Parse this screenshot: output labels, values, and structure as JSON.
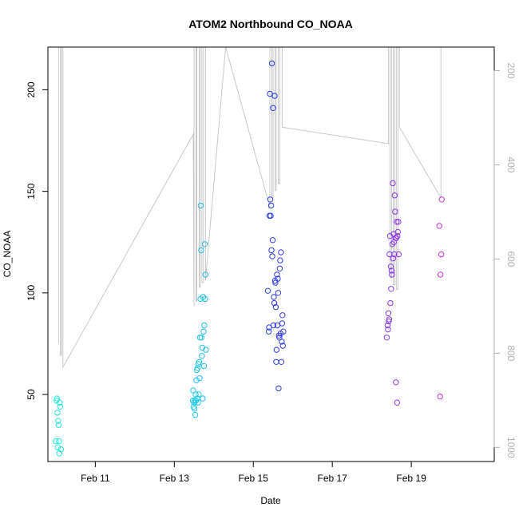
{
  "chart_data": {
    "type": "scatter",
    "title": "ATOM2 Northbound CO_NOAA",
    "xlabel": "Date",
    "ylabel": "CO_NOAA",
    "x_unit": "days in February",
    "xlim": [
      9.8,
      21.1
    ],
    "ylim": [
      17,
      221
    ],
    "x_ticks": [
      {
        "v": 11,
        "label": "Feb 11"
      },
      {
        "v": 13,
        "label": "Feb 13"
      },
      {
        "v": 15,
        "label": "Feb 15"
      },
      {
        "v": 17,
        "label": "Feb 17"
      },
      {
        "v": 19,
        "label": "Feb 19"
      }
    ],
    "y_ticks": [
      50,
      100,
      150,
      200
    ],
    "y2": {
      "label_color": "#b0b0b0",
      "lim": [
        1030,
        150
      ],
      "ticks": [
        200,
        400,
        600,
        800,
        1000
      ],
      "line_color": "#c8c8c8",
      "line_points": [
        [
          10.07,
          778
        ],
        [
          10.07,
          150
        ],
        [
          10.12,
          150
        ],
        [
          10.12,
          805
        ],
        [
          10.14,
          805
        ],
        [
          10.14,
          150
        ],
        [
          10.18,
          150
        ],
        [
          10.18,
          830
        ],
        [
          13.48,
          335
        ],
        [
          13.5,
          700
        ],
        [
          13.5,
          150
        ],
        [
          13.55,
          150
        ],
        [
          13.55,
          690
        ],
        [
          13.57,
          690
        ],
        [
          13.57,
          150
        ],
        [
          13.63,
          150
        ],
        [
          13.63,
          660
        ],
        [
          13.66,
          660
        ],
        [
          13.66,
          150
        ],
        [
          13.7,
          150
        ],
        [
          13.7,
          650
        ],
        [
          13.74,
          650
        ],
        [
          13.74,
          150
        ],
        [
          13.79,
          150
        ],
        [
          13.79,
          645
        ],
        [
          14.3,
          150
        ],
        [
          15.42,
          490
        ],
        [
          15.42,
          150
        ],
        [
          15.47,
          150
        ],
        [
          15.47,
          470
        ],
        [
          15.5,
          470
        ],
        [
          15.5,
          150
        ],
        [
          15.55,
          150
        ],
        [
          15.55,
          455
        ],
        [
          15.58,
          455
        ],
        [
          15.58,
          150
        ],
        [
          15.63,
          150
        ],
        [
          15.63,
          440
        ],
        [
          15.67,
          440
        ],
        [
          15.67,
          150
        ],
        [
          15.73,
          150
        ],
        [
          15.73,
          320
        ],
        [
          18.42,
          355
        ],
        [
          18.42,
          150
        ],
        [
          18.46,
          150
        ],
        [
          18.46,
          640
        ],
        [
          18.5,
          640
        ],
        [
          18.5,
          150
        ],
        [
          18.54,
          150
        ],
        [
          18.54,
          655
        ],
        [
          18.58,
          655
        ],
        [
          18.58,
          150
        ],
        [
          18.62,
          150
        ],
        [
          18.62,
          665
        ],
        [
          18.66,
          665
        ],
        [
          18.66,
          150
        ],
        [
          18.7,
          150
        ],
        [
          18.7,
          320
        ],
        [
          19.75,
          470
        ],
        [
          19.75,
          150
        ]
      ]
    },
    "points": [
      {
        "x": 10.0,
        "y": 27
      },
      {
        "x": 10.02,
        "y": 47
      },
      {
        "x": 10.03,
        "y": 48
      },
      {
        "x": 10.04,
        "y": 41
      },
      {
        "x": 10.05,
        "y": 24
      },
      {
        "x": 10.06,
        "y": 37
      },
      {
        "x": 10.07,
        "y": 35
      },
      {
        "x": 10.08,
        "y": 27
      },
      {
        "x": 10.09,
        "y": 21
      },
      {
        "x": 10.1,
        "y": 46
      },
      {
        "x": 10.11,
        "y": 44
      },
      {
        "x": 10.13,
        "y": 23
      },
      {
        "x": 13.47,
        "y": 47
      },
      {
        "x": 13.48,
        "y": 52
      },
      {
        "x": 13.49,
        "y": 44
      },
      {
        "x": 13.5,
        "y": 46
      },
      {
        "x": 13.51,
        "y": 43
      },
      {
        "x": 13.52,
        "y": 47
      },
      {
        "x": 13.53,
        "y": 40
      },
      {
        "x": 13.54,
        "y": 50
      },
      {
        "x": 13.55,
        "y": 47
      },
      {
        "x": 13.56,
        "y": 57
      },
      {
        "x": 13.57,
        "y": 62
      },
      {
        "x": 13.58,
        "y": 48
      },
      {
        "x": 13.59,
        "y": 63
      },
      {
        "x": 13.6,
        "y": 46
      },
      {
        "x": 13.61,
        "y": 65
      },
      {
        "x": 13.62,
        "y": 50
      },
      {
        "x": 13.63,
        "y": 66
      },
      {
        "x": 13.64,
        "y": 58
      },
      {
        "x": 13.65,
        "y": 78
      },
      {
        "x": 13.66,
        "y": 97
      },
      {
        "x": 13.67,
        "y": 143
      },
      {
        "x": 13.68,
        "y": 121
      },
      {
        "x": 13.69,
        "y": 78
      },
      {
        "x": 13.7,
        "y": 69
      },
      {
        "x": 13.71,
        "y": 73
      },
      {
        "x": 13.72,
        "y": 48
      },
      {
        "x": 13.73,
        "y": 98
      },
      {
        "x": 13.74,
        "y": 81
      },
      {
        "x": 13.75,
        "y": 64
      },
      {
        "x": 13.76,
        "y": 84
      },
      {
        "x": 13.77,
        "y": 124
      },
      {
        "x": 13.78,
        "y": 97
      },
      {
        "x": 13.79,
        "y": 109
      },
      {
        "x": 13.8,
        "y": 72
      },
      {
        "x": 15.37,
        "y": 101
      },
      {
        "x": 15.39,
        "y": 81
      },
      {
        "x": 15.4,
        "y": 83
      },
      {
        "x": 15.41,
        "y": 138
      },
      {
        "x": 15.42,
        "y": 198
      },
      {
        "x": 15.43,
        "y": 146
      },
      {
        "x": 15.44,
        "y": 138
      },
      {
        "x": 15.45,
        "y": 143
      },
      {
        "x": 15.46,
        "y": 121
      },
      {
        "x": 15.47,
        "y": 213
      },
      {
        "x": 15.48,
        "y": 118
      },
      {
        "x": 15.49,
        "y": 126
      },
      {
        "x": 15.5,
        "y": 191
      },
      {
        "x": 15.51,
        "y": 84
      },
      {
        "x": 15.52,
        "y": 98
      },
      {
        "x": 15.53,
        "y": 95
      },
      {
        "x": 15.54,
        "y": 197
      },
      {
        "x": 15.55,
        "y": 106
      },
      {
        "x": 15.56,
        "y": 105
      },
      {
        "x": 15.57,
        "y": 93
      },
      {
        "x": 15.58,
        "y": 66
      },
      {
        "x": 15.59,
        "y": 72
      },
      {
        "x": 15.6,
        "y": 109
      },
      {
        "x": 15.61,
        "y": 84
      },
      {
        "x": 15.62,
        "y": 107
      },
      {
        "x": 15.63,
        "y": 100
      },
      {
        "x": 15.64,
        "y": 53
      },
      {
        "x": 15.65,
        "y": 79
      },
      {
        "x": 15.66,
        "y": 78
      },
      {
        "x": 15.67,
        "y": 112
      },
      {
        "x": 15.68,
        "y": 116
      },
      {
        "x": 15.69,
        "y": 80
      },
      {
        "x": 15.7,
        "y": 120
      },
      {
        "x": 15.71,
        "y": 66
      },
      {
        "x": 15.72,
        "y": 76
      },
      {
        "x": 15.73,
        "y": 85
      },
      {
        "x": 15.74,
        "y": 89
      },
      {
        "x": 15.75,
        "y": 74
      },
      {
        "x": 15.76,
        "y": 81
      },
      {
        "x": 18.38,
        "y": 78
      },
      {
        "x": 18.4,
        "y": 84
      },
      {
        "x": 18.41,
        "y": 82
      },
      {
        "x": 18.42,
        "y": 90
      },
      {
        "x": 18.43,
        "y": 86
      },
      {
        "x": 18.44,
        "y": 87
      },
      {
        "x": 18.45,
        "y": 119
      },
      {
        "x": 18.46,
        "y": 128
      },
      {
        "x": 18.47,
        "y": 95
      },
      {
        "x": 18.48,
        "y": 113
      },
      {
        "x": 18.49,
        "y": 102
      },
      {
        "x": 18.5,
        "y": 111
      },
      {
        "x": 18.51,
        "y": 109
      },
      {
        "x": 18.52,
        "y": 124
      },
      {
        "x": 18.53,
        "y": 154
      },
      {
        "x": 18.54,
        "y": 117
      },
      {
        "x": 18.55,
        "y": 129
      },
      {
        "x": 18.56,
        "y": 125
      },
      {
        "x": 18.57,
        "y": 119
      },
      {
        "x": 18.58,
        "y": 148
      },
      {
        "x": 18.59,
        "y": 140
      },
      {
        "x": 18.6,
        "y": 127
      },
      {
        "x": 18.61,
        "y": 56
      },
      {
        "x": 18.62,
        "y": 127
      },
      {
        "x": 18.63,
        "y": 135
      },
      {
        "x": 18.64,
        "y": 46
      },
      {
        "x": 18.65,
        "y": 128
      },
      {
        "x": 18.66,
        "y": 130
      },
      {
        "x": 18.67,
        "y": 135
      },
      {
        "x": 18.68,
        "y": 119
      },
      {
        "x": 19.71,
        "y": 133
      },
      {
        "x": 19.73,
        "y": 49
      },
      {
        "x": 19.74,
        "y": 109
      },
      {
        "x": 19.76,
        "y": 119
      },
      {
        "x": 19.77,
        "y": 146
      }
    ]
  }
}
